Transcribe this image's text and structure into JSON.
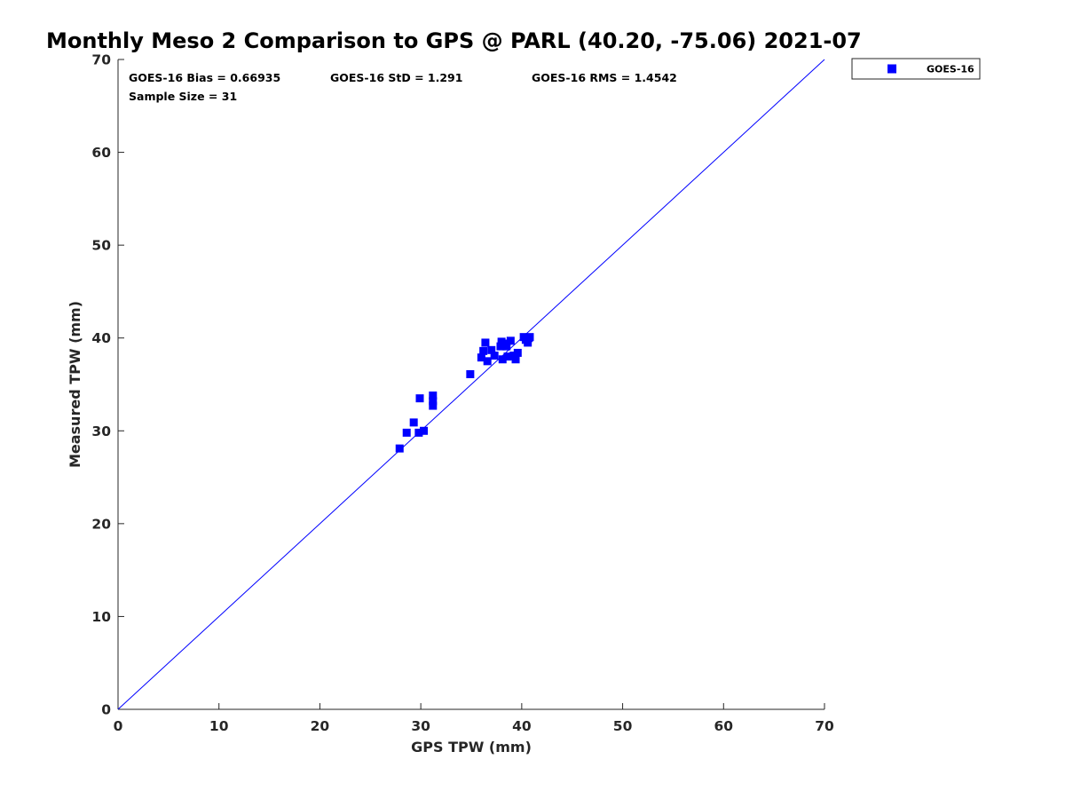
{
  "chart_data": {
    "type": "scatter",
    "title": "Monthly Meso 2 Comparison to GPS @ PARL (40.20, -75.06) 2021-07",
    "xlabel": "GPS TPW (mm)",
    "ylabel": "Measured TPW (mm)",
    "xlim": [
      0,
      70
    ],
    "ylim": [
      0,
      70
    ],
    "xticks": [
      "0",
      "10",
      "20",
      "30",
      "40",
      "50",
      "60",
      "70"
    ],
    "yticks": [
      "0",
      "10",
      "20",
      "30",
      "40",
      "50",
      "60",
      "70"
    ],
    "grid": false,
    "legend_position": "outside-top-right",
    "reference_line": {
      "from": [
        0,
        0
      ],
      "to": [
        70,
        70
      ],
      "color": "#0000ff"
    },
    "stats": {
      "bias": "GOES-16 Bias = 0.66935",
      "std": "GOES-16 StD = 1.291",
      "rms": "GOES-16 RMS = 1.4542",
      "sample_size": "Sample Size = 31"
    },
    "series": [
      {
        "name": "GOES-16",
        "color": "#0000ff",
        "marker": "square",
        "points": [
          [
            27.9,
            28.1
          ],
          [
            28.6,
            29.8
          ],
          [
            29.3,
            30.9
          ],
          [
            29.8,
            29.8
          ],
          [
            29.9,
            33.5
          ],
          [
            30.3,
            30.0
          ],
          [
            31.2,
            33.8
          ],
          [
            31.2,
            33.2
          ],
          [
            31.2,
            32.7
          ],
          [
            34.9,
            36.1
          ],
          [
            36.0,
            37.9
          ],
          [
            36.2,
            38.6
          ],
          [
            36.4,
            39.5
          ],
          [
            36.6,
            37.5
          ],
          [
            37.0,
            38.7
          ],
          [
            37.3,
            38.1
          ],
          [
            37.9,
            39.1
          ],
          [
            38.0,
            39.6
          ],
          [
            38.1,
            37.7
          ],
          [
            38.3,
            39.4
          ],
          [
            38.5,
            39.1
          ],
          [
            38.6,
            38.0
          ],
          [
            38.9,
            39.7
          ],
          [
            39.2,
            38.1
          ],
          [
            39.4,
            37.7
          ],
          [
            39.6,
            38.4
          ],
          [
            40.2,
            40.1
          ],
          [
            40.4,
            39.8
          ],
          [
            40.6,
            39.5
          ],
          [
            40.7,
            40.0
          ],
          [
            40.8,
            40.1
          ]
        ]
      }
    ]
  }
}
